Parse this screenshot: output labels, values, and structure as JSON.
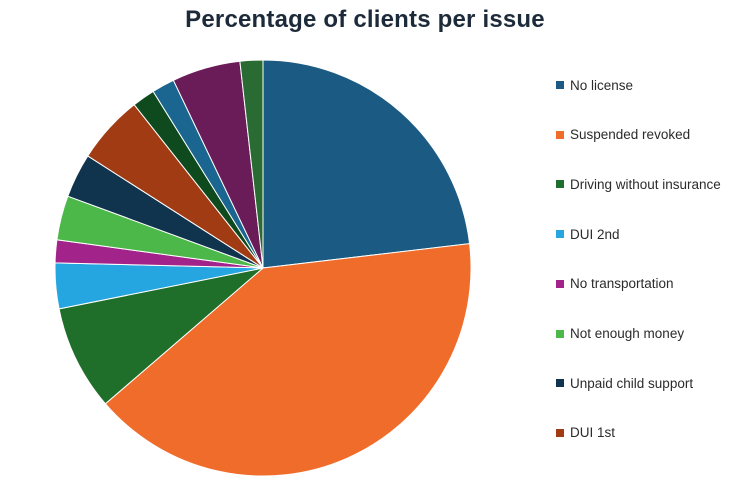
{
  "chart_data": {
    "type": "pie",
    "title": "Percentage of clients per issue",
    "legend_position": "right",
    "slices": [
      {
        "label": "No license",
        "value": 23.5,
        "color": "#1b5a82",
        "legend": true
      },
      {
        "label": "Suspended revoked",
        "value": 41.2,
        "color": "#ef6c2a",
        "legend": true
      },
      {
        "label": "Driving without insurance",
        "value": 8.3,
        "color": "#1f6f2b",
        "legend": true
      },
      {
        "label": "DUI 2nd",
        "value": 3.6,
        "color": "#25a6e0",
        "legend": true
      },
      {
        "label": "No transportation",
        "value": 1.8,
        "color": "#a2248a",
        "legend": true
      },
      {
        "label": "Not enough money",
        "value": 3.5,
        "color": "#4cb849",
        "legend": true
      },
      {
        "label": "Unpaid child support",
        "value": 3.5,
        "color": "#11344e",
        "legend": true
      },
      {
        "label": "DUI 1st",
        "value": 5.4,
        "color": "#a13b14",
        "legend": true
      },
      {
        "label": "",
        "value": 1.8,
        "color": "#0f4a1e",
        "legend": false
      },
      {
        "label": "",
        "value": 1.8,
        "color": "#1a6690",
        "legend": false
      },
      {
        "label": "",
        "value": 5.4,
        "color": "#6a1c58",
        "legend": false
      },
      {
        "label": "",
        "value": 1.8,
        "color": "#2a6b33",
        "legend": false
      }
    ]
  }
}
